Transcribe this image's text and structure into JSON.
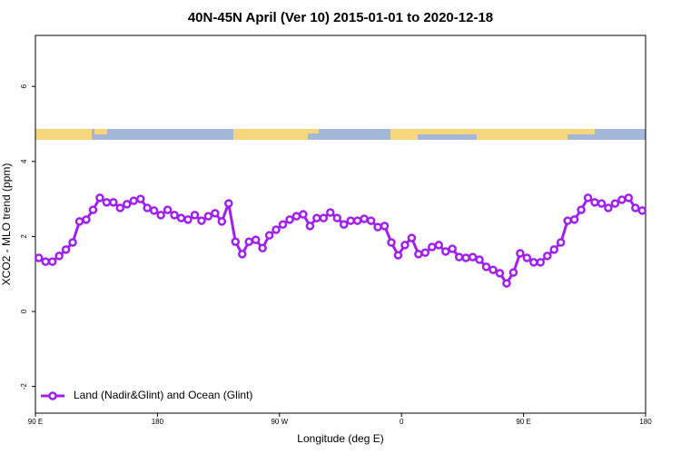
{
  "chart_data": {
    "type": "line",
    "title": "40N-45N April (Ver 10)   2015-01-01 to 2020-12-18",
    "x_label": "Longitude (deg E)",
    "y_label": "XCO2 - MLO trend (ppm)",
    "x": [
      92.5,
      97.5,
      102.5,
      107.5,
      112.5,
      117.5,
      122.5,
      127.5,
      132.5,
      137.5,
      142.5,
      147.5,
      152.5,
      157.5,
      162.5,
      167.5,
      172.5,
      177.5,
      182.5,
      187.5,
      192.5,
      197.5,
      202.5,
      207.5,
      212.5,
      217.5,
      222.5,
      227.5,
      232.5,
      237.5,
      242.5,
      247.5,
      252.5,
      257.5,
      262.5,
      267.5,
      272.5,
      277.5,
      282.5,
      287.5,
      292.5,
      297.5,
      302.5,
      307.5,
      312.5,
      317.5,
      322.5,
      327.5,
      332.5,
      337.5,
      342.5,
      347.5,
      352.5,
      357.5,
      362.5,
      367.5,
      372.5,
      377.5,
      382.5,
      387.5,
      392.5,
      397.5,
      402.5,
      407.5,
      412.5,
      417.5,
      422.5,
      427.5,
      432.5,
      437.5,
      442.5,
      447.5,
      452.5,
      457.5,
      462.5,
      467.5,
      472.5,
      477.5,
      482.5,
      487.5,
      492.5,
      497.5,
      502.5,
      507.5,
      512.5,
      517.5,
      522.5,
      527.5,
      532.5,
      537.5
    ],
    "series": [
      {
        "name": "Land (Nadir&Glint) and Ocean (Glint)",
        "color": "#a020f0",
        "values": [
          1.43,
          1.33,
          1.33,
          1.48,
          1.65,
          1.84,
          2.4,
          2.45,
          2.71,
          3.03,
          2.91,
          2.91,
          2.76,
          2.86,
          2.95,
          3.0,
          2.76,
          2.69,
          2.57,
          2.71,
          2.57,
          2.49,
          2.45,
          2.57,
          2.42,
          2.54,
          2.62,
          2.4,
          2.88,
          1.86,
          1.53,
          1.86,
          1.91,
          1.69,
          2.03,
          2.18,
          2.32,
          2.45,
          2.54,
          2.59,
          2.28,
          2.49,
          2.49,
          2.64,
          2.49,
          2.32,
          2.42,
          2.42,
          2.47,
          2.42,
          2.25,
          2.28,
          1.84,
          1.5,
          1.77,
          1.96,
          1.53,
          1.57,
          1.72,
          1.77,
          1.6,
          1.67,
          1.45,
          1.43,
          1.45,
          1.38,
          1.19,
          1.11,
          1.02,
          0.75,
          1.04,
          1.55,
          1.43,
          1.31,
          1.31,
          1.48,
          1.65,
          1.84,
          2.42,
          2.45,
          2.71,
          3.03,
          2.91,
          2.88,
          2.76,
          2.88,
          2.98,
          3.03,
          2.76,
          2.69
        ]
      }
    ],
    "xlim": [
      90,
      540
    ],
    "xticks": [
      {
        "value": 90,
        "label": "90 E"
      },
      180,
      {
        "value": 270,
        "label": "90 W"
      },
      {
        "value": 360,
        "label": "0"
      },
      {
        "value": 450,
        "label": "90 E"
      },
      {
        "value": 540,
        "label": "180"
      }
    ],
    "ylim": [
      -2.71,
      7.36
    ],
    "yticks": [
      -2,
      0,
      2,
      4,
      6
    ],
    "legend": "bottom-left"
  }
}
